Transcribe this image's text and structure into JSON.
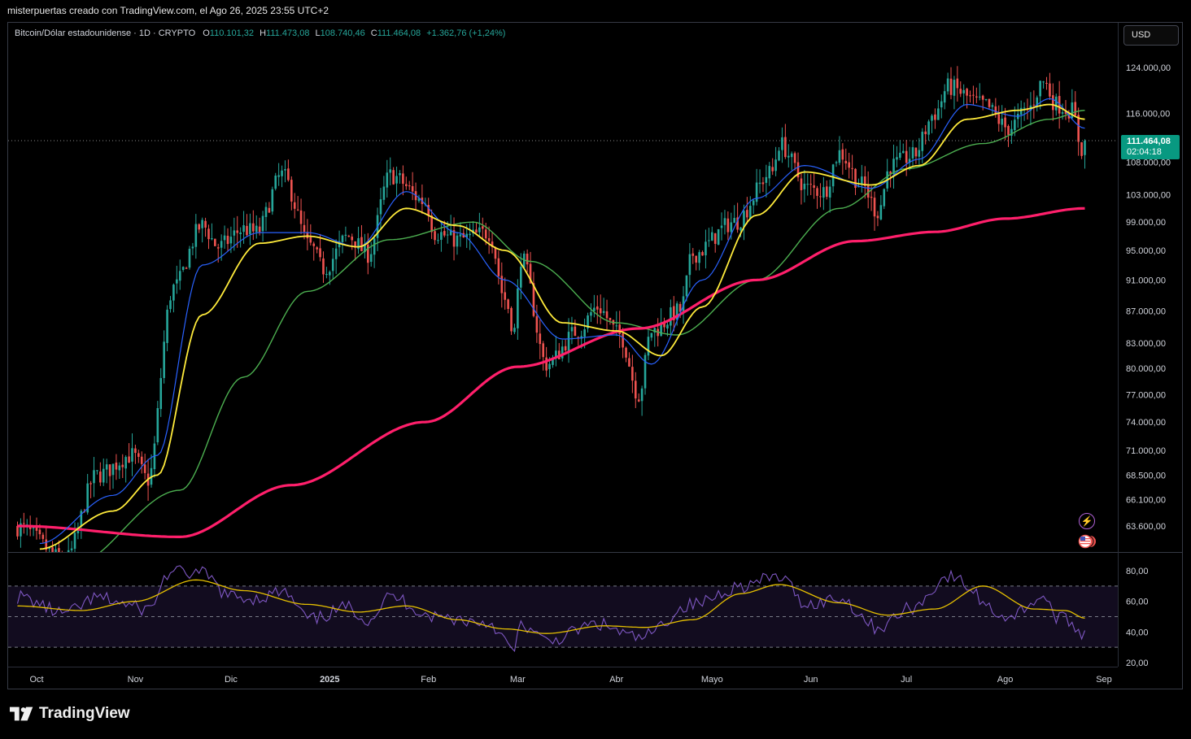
{
  "caption": "misterpuertas creado con TradingView.com, el Ago 26, 2025 23:55 UTC+2",
  "legend": {
    "symbol": "Bitcoin/Dólar estadounidense · 1D · CRYPTO",
    "o_label": "O",
    "o": "110.101,32",
    "h_label": "H",
    "h": "111.473,08",
    "l_label": "L",
    "l": "108.740,46",
    "c_label": "C",
    "c": "111.464,08",
    "change": "+1.362,76 (+1,24%)"
  },
  "currency": "USD",
  "last_price": {
    "price": "111.464,08",
    "countdown": "02:04:18"
  },
  "brand": "TradingView",
  "icons": [
    "lightning-icon",
    "us-flag-icon",
    "tradingview-logo-icon"
  ],
  "colors": {
    "up": "#26a69a",
    "down": "#ef5350",
    "ma_fast": "#2962ff",
    "ma_mid": "#ffeb3b",
    "ma_slow": "#4caf50",
    "ma_long": "#ff1f6b",
    "rsi": "#7e57c2",
    "rsi_ma": "#e6c000",
    "accent": "#089981"
  },
  "chart_data": [
    {
      "type": "candlestick",
      "series_lines": [
        "ma-fast",
        "ma-mid",
        "ma-slow",
        "ma-long"
      ],
      "x_ticks": [
        "Oct",
        "Nov",
        "Dic",
        "2025",
        "Feb",
        "Mar",
        "Abr",
        "Mayo",
        "Jun",
        "Jul",
        "Ago",
        "Sep"
      ],
      "y_ticks": [
        "124.000,00",
        "116.000,00",
        "108.000,00",
        "103.000,00",
        "99.000,00",
        "95.000,00",
        "91.000,00",
        "87.000,00",
        "83.000,00",
        "80.000,00",
        "77.000,00",
        "74.000,00",
        "71.000,00",
        "68.500,00",
        "66.100,00",
        "63.600,00"
      ],
      "y_tick_values": [
        124000,
        116000,
        108000,
        103000,
        99000,
        95000,
        91000,
        87000,
        83000,
        80000,
        77000,
        74000,
        71000,
        68500,
        66100,
        63600
      ],
      "y_scale": "log",
      "x_tick_dates": [
        "2024-10-01",
        "2024-11-01",
        "2024-12-01",
        "2025-01-01",
        "2025-02-01",
        "2025-03-01",
        "2025-04-01",
        "2025-05-01",
        "2025-06-01",
        "2025-07-01",
        "2025-08-01",
        "2025-09-01"
      ],
      "price_anchors": [
        [
          "2024-09-25",
          63500
        ],
        [
          "2024-10-10",
          60500
        ],
        [
          "2024-10-20",
          68500
        ],
        [
          "2024-10-31",
          70500
        ],
        [
          "2024-11-05",
          68000
        ],
        [
          "2024-11-13",
          90000
        ],
        [
          "2024-11-22",
          98500
        ],
        [
          "2024-11-27",
          95500
        ],
        [
          "2024-12-05",
          98000
        ],
        [
          "2024-12-09",
          97500
        ],
        [
          "2024-12-17",
          106000
        ],
        [
          "2024-12-26",
          95500
        ],
        [
          "2024-12-30",
          92500
        ],
        [
          "2025-01-07",
          97000
        ],
        [
          "2025-01-13",
          94500
        ],
        [
          "2025-01-20",
          106000
        ],
        [
          "2025-01-31",
          102000
        ],
        [
          "2025-02-03",
          97500
        ],
        [
          "2025-02-10",
          96500
        ],
        [
          "2025-02-20",
          97500
        ],
        [
          "2025-02-25",
          88500
        ],
        [
          "2025-02-28",
          84500
        ],
        [
          "2025-03-02",
          94000
        ],
        [
          "2025-03-10",
          80500
        ],
        [
          "2025-03-20",
          84500
        ],
        [
          "2025-03-26",
          87500
        ],
        [
          "2025-04-02",
          84000
        ],
        [
          "2025-04-08",
          77000
        ],
        [
          "2025-04-12",
          84500
        ],
        [
          "2025-04-21",
          87000
        ],
        [
          "2025-04-25",
          94500
        ],
        [
          "2025-05-08",
          99000
        ],
        [
          "2025-05-20",
          106500
        ],
        [
          "2025-05-22",
          111000
        ],
        [
          "2025-05-31",
          104000
        ],
        [
          "2025-06-05",
          103500
        ],
        [
          "2025-06-10",
          109500
        ],
        [
          "2025-06-17",
          104500
        ],
        [
          "2025-06-22",
          100500
        ],
        [
          "2025-06-26",
          107500
        ],
        [
          "2025-07-03",
          109000
        ],
        [
          "2025-07-10",
          116000
        ],
        [
          "2025-07-14",
          120500
        ],
        [
          "2025-07-25",
          117500
        ],
        [
          "2025-08-02",
          113500
        ],
        [
          "2025-08-08",
          116500
        ],
        [
          "2025-08-13",
          121500
        ],
        [
          "2025-08-17",
          117500
        ],
        [
          "2025-08-22",
          116500
        ],
        [
          "2025-08-25",
          110100
        ],
        [
          "2025-08-26",
          111464
        ]
      ],
      "ma_long_anchors": [
        [
          "2024-09-25",
          63600
        ],
        [
          "2024-11-15",
          62600
        ],
        [
          "2024-12-20",
          67500
        ],
        [
          "2025-01-31",
          74000
        ],
        [
          "2025-03-01",
          80200
        ],
        [
          "2025-04-08",
          84800
        ],
        [
          "2025-05-15",
          91000
        ],
        [
          "2025-06-15",
          96300
        ],
        [
          "2025-07-10",
          97600
        ],
        [
          "2025-08-01",
          99500
        ],
        [
          "2025-08-26",
          101000
        ]
      ],
      "ma_slow_anchors": [
        [
          "2024-10-12",
          60000
        ],
        [
          "2024-11-15",
          67000
        ],
        [
          "2024-12-05",
          79000
        ],
        [
          "2024-12-25",
          89500
        ],
        [
          "2025-01-20",
          96500
        ],
        [
          "2025-02-15",
          99000
        ],
        [
          "2025-03-05",
          93500
        ],
        [
          "2025-04-01",
          85500
        ],
        [
          "2025-04-20",
          84000
        ],
        [
          "2025-05-15",
          91000
        ],
        [
          "2025-06-10",
          101000
        ],
        [
          "2025-07-01",
          107000
        ],
        [
          "2025-07-25",
          111000
        ],
        [
          "2025-08-15",
          115000
        ],
        [
          "2025-08-26",
          116500
        ]
      ],
      "ma_mid_anchors": [
        [
          "2024-10-02",
          61500
        ],
        [
          "2024-10-25",
          65000
        ],
        [
          "2024-11-08",
          68500
        ],
        [
          "2024-11-22",
          86500
        ],
        [
          "2024-12-10",
          96000
        ],
        [
          "2024-12-25",
          97000
        ],
        [
          "2025-01-10",
          95500
        ],
        [
          "2025-01-25",
          101000
        ],
        [
          "2025-02-10",
          98500
        ],
        [
          "2025-02-25",
          95000
        ],
        [
          "2025-03-15",
          85500
        ],
        [
          "2025-04-01",
          84500
        ],
        [
          "2025-04-15",
          81500
        ],
        [
          "2025-04-28",
          87500
        ],
        [
          "2025-05-15",
          100000
        ],
        [
          "2025-05-30",
          106500
        ],
        [
          "2025-06-20",
          104500
        ],
        [
          "2025-07-05",
          107500
        ],
        [
          "2025-07-20",
          115000
        ],
        [
          "2025-08-05",
          116500
        ],
        [
          "2025-08-15",
          117500
        ],
        [
          "2025-08-26",
          115000
        ]
      ],
      "ma_fast_anchors": [
        [
          "2024-10-02",
          62000
        ],
        [
          "2024-10-25",
          66500
        ],
        [
          "2024-11-08",
          70500
        ],
        [
          "2024-11-22",
          93000
        ],
        [
          "2024-12-10",
          97500
        ],
        [
          "2024-12-25",
          97500
        ],
        [
          "2025-01-10",
          95500
        ],
        [
          "2025-01-25",
          103500
        ],
        [
          "2025-02-10",
          97500
        ],
        [
          "2025-02-25",
          91000
        ],
        [
          "2025-03-15",
          83500
        ],
        [
          "2025-04-01",
          84000
        ],
        [
          "2025-04-12",
          80500
        ],
        [
          "2025-04-28",
          91000
        ],
        [
          "2025-05-15",
          102500
        ],
        [
          "2025-05-30",
          107500
        ],
        [
          "2025-06-20",
          104000
        ],
        [
          "2025-07-05",
          108500
        ],
        [
          "2025-07-20",
          117500
        ],
        [
          "2025-08-05",
          115500
        ],
        [
          "2025-08-15",
          118500
        ],
        [
          "2025-08-26",
          113500
        ]
      ],
      "last_price_value": 111464.08
    },
    {
      "type": "line",
      "y_ticks": [
        "80,00",
        "60,00",
        "40,00",
        "20,00"
      ],
      "y_tick_values": [
        80,
        60,
        40,
        20
      ],
      "ylim": [
        20,
        80
      ],
      "bands": [
        70,
        50,
        30
      ],
      "rsi_anchors": [
        [
          "2024-09-25",
          63
        ],
        [
          "2024-10-10",
          52
        ],
        [
          "2024-10-20",
          62
        ],
        [
          "2024-11-05",
          55
        ],
        [
          "2024-11-12",
          79
        ],
        [
          "2024-11-22",
          78
        ],
        [
          "2024-12-01",
          63
        ],
        [
          "2024-12-09",
          62
        ],
        [
          "2024-12-17",
          66
        ],
        [
          "2024-12-26",
          48
        ],
        [
          "2025-01-07",
          56
        ],
        [
          "2025-01-13",
          48
        ],
        [
          "2025-01-20",
          63
        ],
        [
          "2025-02-03",
          50
        ],
        [
          "2025-02-20",
          46
        ],
        [
          "2025-02-28",
          28
        ],
        [
          "2025-03-02",
          45
        ],
        [
          "2025-03-10",
          34
        ],
        [
          "2025-03-26",
          45
        ],
        [
          "2025-04-08",
          36
        ],
        [
          "2025-04-25",
          58
        ],
        [
          "2025-05-10",
          70
        ],
        [
          "2025-05-22",
          76
        ],
        [
          "2025-05-31",
          58
        ],
        [
          "2025-06-10",
          62
        ],
        [
          "2025-06-22",
          43
        ],
        [
          "2025-07-03",
          56
        ],
        [
          "2025-07-14",
          76
        ],
        [
          "2025-08-02",
          50
        ],
        [
          "2025-08-13",
          63
        ],
        [
          "2025-08-17",
          50
        ],
        [
          "2025-08-22",
          46
        ],
        [
          "2025-08-25",
          39
        ],
        [
          "2025-08-26",
          41
        ]
      ],
      "rsi_ma_anchors": [
        [
          "2024-09-25",
          57
        ],
        [
          "2024-10-15",
          54
        ],
        [
          "2024-11-01",
          60
        ],
        [
          "2024-11-20",
          74
        ],
        [
          "2024-12-05",
          67
        ],
        [
          "2024-12-25",
          58
        ],
        [
          "2025-01-10",
          53
        ],
        [
          "2025-01-25",
          57
        ],
        [
          "2025-02-10",
          48
        ],
        [
          "2025-02-25",
          42
        ],
        [
          "2025-03-10",
          39
        ],
        [
          "2025-03-28",
          44
        ],
        [
          "2025-04-10",
          43
        ],
        [
          "2025-04-25",
          48
        ],
        [
          "2025-05-10",
          65
        ],
        [
          "2025-05-22",
          71
        ],
        [
          "2025-06-10",
          59
        ],
        [
          "2025-06-25",
          51
        ],
        [
          "2025-07-10",
          55
        ],
        [
          "2025-07-25",
          70
        ],
        [
          "2025-08-10",
          55
        ],
        [
          "2025-08-20",
          54
        ],
        [
          "2025-08-26",
          49
        ]
      ]
    }
  ]
}
